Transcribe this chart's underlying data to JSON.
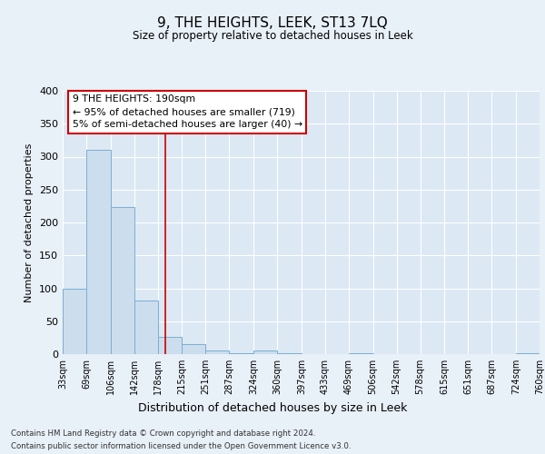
{
  "title": "9, THE HEIGHTS, LEEK, ST13 7LQ",
  "subtitle": "Size of property relative to detached houses in Leek",
  "xlabel": "Distribution of detached houses by size in Leek",
  "ylabel": "Number of detached properties",
  "bar_color": "#ccdded",
  "bar_edge_color": "#7aafd4",
  "background_color": "#e8f0f8",
  "plot_bg_color": "#dce8f4",
  "bin_edges": [
    33,
    69,
    106,
    142,
    178,
    215,
    251,
    287,
    324,
    360,
    397,
    433,
    469,
    506,
    542,
    578,
    615,
    651,
    687,
    724,
    760
  ],
  "bar_heights": [
    100,
    311,
    224,
    82,
    26,
    15,
    5,
    2,
    5,
    2,
    0,
    0,
    2,
    0,
    0,
    0,
    0,
    0,
    0,
    2
  ],
  "red_line_x": 190,
  "red_line_color": "#cc0000",
  "ylim": [
    0,
    400
  ],
  "yticks": [
    0,
    50,
    100,
    150,
    200,
    250,
    300,
    350,
    400
  ],
  "annotation_text": "9 THE HEIGHTS: 190sqm\n← 95% of detached houses are smaller (719)\n5% of semi-detached houses are larger (40) →",
  "footer_line1": "Contains HM Land Registry data © Crown copyright and database right 2024.",
  "footer_line2": "Contains public sector information licensed under the Open Government Licence v3.0.",
  "tick_labels": [
    "33sqm",
    "69sqm",
    "106sqm",
    "142sqm",
    "178sqm",
    "215sqm",
    "251sqm",
    "287sqm",
    "324sqm",
    "360sqm",
    "397sqm",
    "433sqm",
    "469sqm",
    "506sqm",
    "542sqm",
    "578sqm",
    "615sqm",
    "651sqm",
    "687sqm",
    "724sqm",
    "760sqm"
  ]
}
